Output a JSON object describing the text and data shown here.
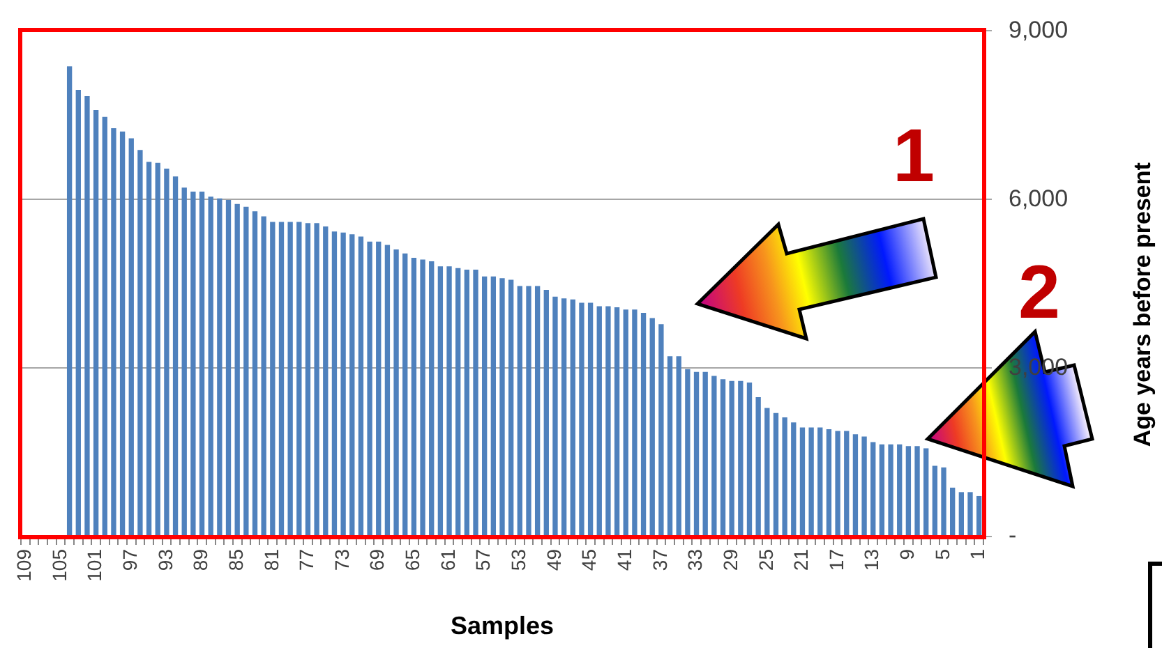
{
  "chart_data": {
    "type": "bar",
    "xlabel": "Samples",
    "ylabel": "Age years before present",
    "categories": [
      "109",
      null,
      null,
      null,
      "105",
      null,
      null,
      null,
      "101",
      null,
      null,
      null,
      "97",
      null,
      null,
      null,
      "93",
      null,
      null,
      null,
      "89",
      null,
      null,
      null,
      "85",
      null,
      null,
      null,
      "81",
      null,
      null,
      null,
      "77",
      null,
      null,
      null,
      "73",
      null,
      null,
      null,
      "69",
      null,
      null,
      null,
      "65",
      null,
      null,
      null,
      "61",
      null,
      null,
      null,
      "57",
      null,
      null,
      null,
      "53",
      null,
      null,
      null,
      "49",
      null,
      null,
      null,
      "45",
      null,
      null,
      null,
      "41",
      null,
      null,
      null,
      "37",
      null,
      null,
      null,
      "33",
      null,
      null,
      null,
      "29",
      null,
      null,
      null,
      "25",
      null,
      null,
      null,
      "21",
      null,
      null,
      null,
      "17",
      null,
      null,
      null,
      "13",
      null,
      null,
      null,
      "9",
      null,
      null,
      null,
      "5",
      null,
      null,
      null,
      "1"
    ],
    "values": [
      null,
      null,
      null,
      null,
      null,
      8370,
      7950,
      7840,
      7590,
      7470,
      7270,
      7210,
      7090,
      6880,
      6670,
      6650,
      6550,
      6410,
      6210,
      6140,
      6140,
      6050,
      6020,
      5990,
      5920,
      5870,
      5790,
      5700,
      5600,
      5600,
      5600,
      5600,
      5580,
      5580,
      5520,
      5430,
      5410,
      5380,
      5340,
      5250,
      5250,
      5190,
      5110,
      5040,
      4960,
      4930,
      4900,
      4810,
      4810,
      4780,
      4750,
      4750,
      4630,
      4630,
      4600,
      4570,
      4460,
      4460,
      4460,
      4390,
      4270,
      4240,
      4220,
      4160,
      4160,
      4100,
      4100,
      4080,
      4040,
      4040,
      3980,
      3890,
      3780,
      3210,
      3210,
      2980,
      2930,
      2930,
      2860,
      2800,
      2770,
      2770,
      2740,
      2480,
      2290,
      2200,
      2120,
      2030,
      1940,
      1940,
      1940,
      1910,
      1880,
      1880,
      1820,
      1780,
      1680,
      1640,
      1640,
      1640,
      1610,
      1610,
      1570,
      1260,
      1230,
      870,
      790,
      790,
      720
    ],
    "color": "#4f81bd",
    "ylim": [
      0,
      9000
    ],
    "yticks": [
      {
        "value": 0,
        "label": "-"
      },
      {
        "value": 3000,
        "label": "3,000"
      },
      {
        "value": 6000,
        "label": "6,000"
      },
      {
        "value": 9000,
        "label": "9,000"
      }
    ],
    "grid": "y",
    "annotations": [
      "1",
      "2"
    ]
  }
}
